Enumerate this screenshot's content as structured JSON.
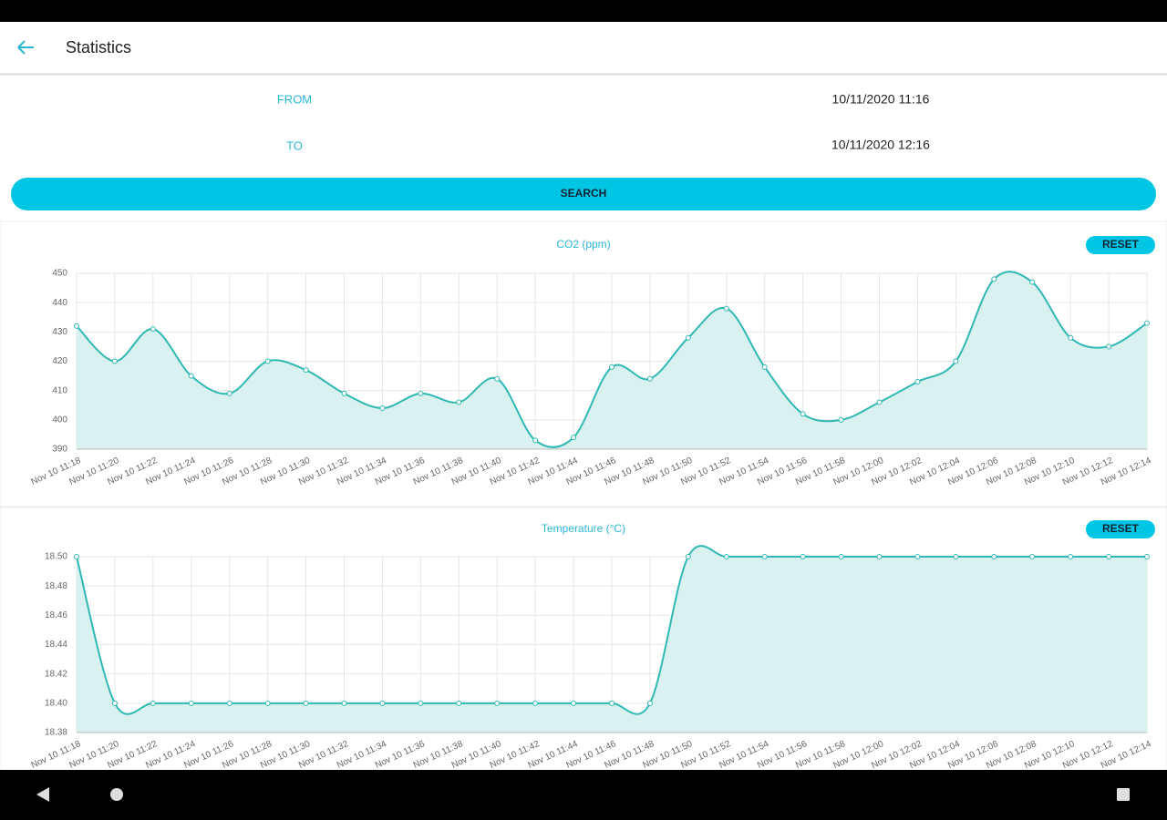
{
  "header": {
    "title": "Statistics"
  },
  "form": {
    "from_label": "FROM",
    "from_value": "10/11/2020 11:16",
    "to_label": "TO",
    "to_value": "10/11/2020 12:16",
    "search": "SEARCH"
  },
  "chart_data": [
    {
      "type": "line",
      "title": "CO2 (ppm)",
      "reset": "RESET",
      "color": "#2fb8b4",
      "fill": "#d9f1ef",
      "grid": true,
      "categories": [
        "Nov 10 11:18",
        "Nov 10 11:20",
        "Nov 10 11:22",
        "Nov 10 11:24",
        "Nov 10 11:26",
        "Nov 10 11:28",
        "Nov 10 11:30",
        "Nov 10 11:32",
        "Nov 10 11:34",
        "Nov 10 11:36",
        "Nov 10 11:38",
        "Nov 10 11:40",
        "Nov 10 11:42",
        "Nov 10 11:44",
        "Nov 10 11:46",
        "Nov 10 11:48",
        "Nov 10 11:50",
        "Nov 10 11:52",
        "Nov 10 11:54",
        "Nov 10 11:56",
        "Nov 10 11:58",
        "Nov 10 12:00",
        "Nov 10 12:02",
        "Nov 10 12:04",
        "Nov 10 12:06",
        "Nov 10 12:08",
        "Nov 10 12:10",
        "Nov 10 12:12",
        "Nov 10 12:14"
      ],
      "values": [
        432,
        420,
        431,
        415,
        409,
        420,
        417,
        409,
        404,
        409,
        406,
        414,
        393,
        394,
        418,
        414,
        428,
        438,
        418,
        402,
        400,
        406,
        413,
        420,
        448,
        447,
        428,
        425,
        433
      ],
      "ylim": [
        390,
        450
      ],
      "yticks": [
        390,
        400,
        410,
        420,
        430,
        440,
        450
      ]
    },
    {
      "type": "line",
      "title": "Temperature (°C)",
      "reset": "RESET",
      "color": "#2fb8b4",
      "fill": "#d9f1ef",
      "grid": true,
      "categories": [
        "Nov 10 11:18",
        "Nov 10 11:20",
        "Nov 10 11:22",
        "Nov 10 11:24",
        "Nov 10 11:26",
        "Nov 10 11:28",
        "Nov 10 11:30",
        "Nov 10 11:32",
        "Nov 10 11:34",
        "Nov 10 11:36",
        "Nov 10 11:38",
        "Nov 10 11:40",
        "Nov 10 11:42",
        "Nov 10 11:44",
        "Nov 10 11:46",
        "Nov 10 11:48",
        "Nov 10 11:50",
        "Nov 10 11:52",
        "Nov 10 11:54",
        "Nov 10 11:56",
        "Nov 10 11:58",
        "Nov 10 12:00",
        "Nov 10 12:02",
        "Nov 10 12:04",
        "Nov 10 12:06",
        "Nov 10 12:08",
        "Nov 10 12:10",
        "Nov 10 12:12",
        "Nov 10 12:14"
      ],
      "values": [
        18.5,
        18.4,
        18.4,
        18.4,
        18.4,
        18.4,
        18.4,
        18.4,
        18.4,
        18.4,
        18.4,
        18.4,
        18.4,
        18.4,
        18.4,
        18.4,
        18.5,
        18.5,
        18.5,
        18.5,
        18.5,
        18.5,
        18.5,
        18.5,
        18.5,
        18.5,
        18.5,
        18.5,
        18.5
      ],
      "ylim": [
        18.38,
        18.5
      ],
      "yticks": [
        18.38,
        {
          "value": 18.4,
          "label": "18.40"
        },
        18.42,
        18.44,
        18.46,
        18.48,
        {
          "value": 18.5,
          "label": "18.50"
        }
      ]
    }
  ]
}
